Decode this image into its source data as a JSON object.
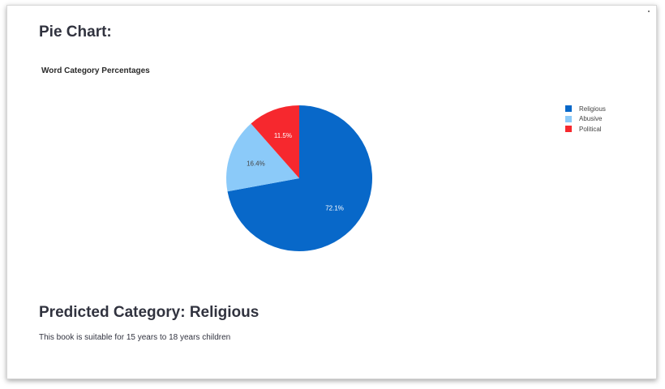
{
  "page": {
    "section_title": "Pie Chart:",
    "predicted_label": "Predicted Category:",
    "predicted_value": "Religious",
    "suitability_text": "This book is suitable for 15 years to 18 years children"
  },
  "chart_data": {
    "type": "pie",
    "title": "Word Category Percentages",
    "labels": [
      "Religious",
      "Abusive",
      "Political"
    ],
    "values": [
      72.1,
      16.4,
      11.5
    ],
    "value_labels": [
      "72.1%",
      "16.4%",
      "11.5%"
    ],
    "colors": [
      "#0868c9",
      "#8bcaf9",
      "#f6282e"
    ],
    "label_colors": [
      "#ffffff",
      "#444444",
      "#ffffff"
    ],
    "legend_position": "top-right",
    "start_angle_deg": 90,
    "direction": "clockwise"
  }
}
